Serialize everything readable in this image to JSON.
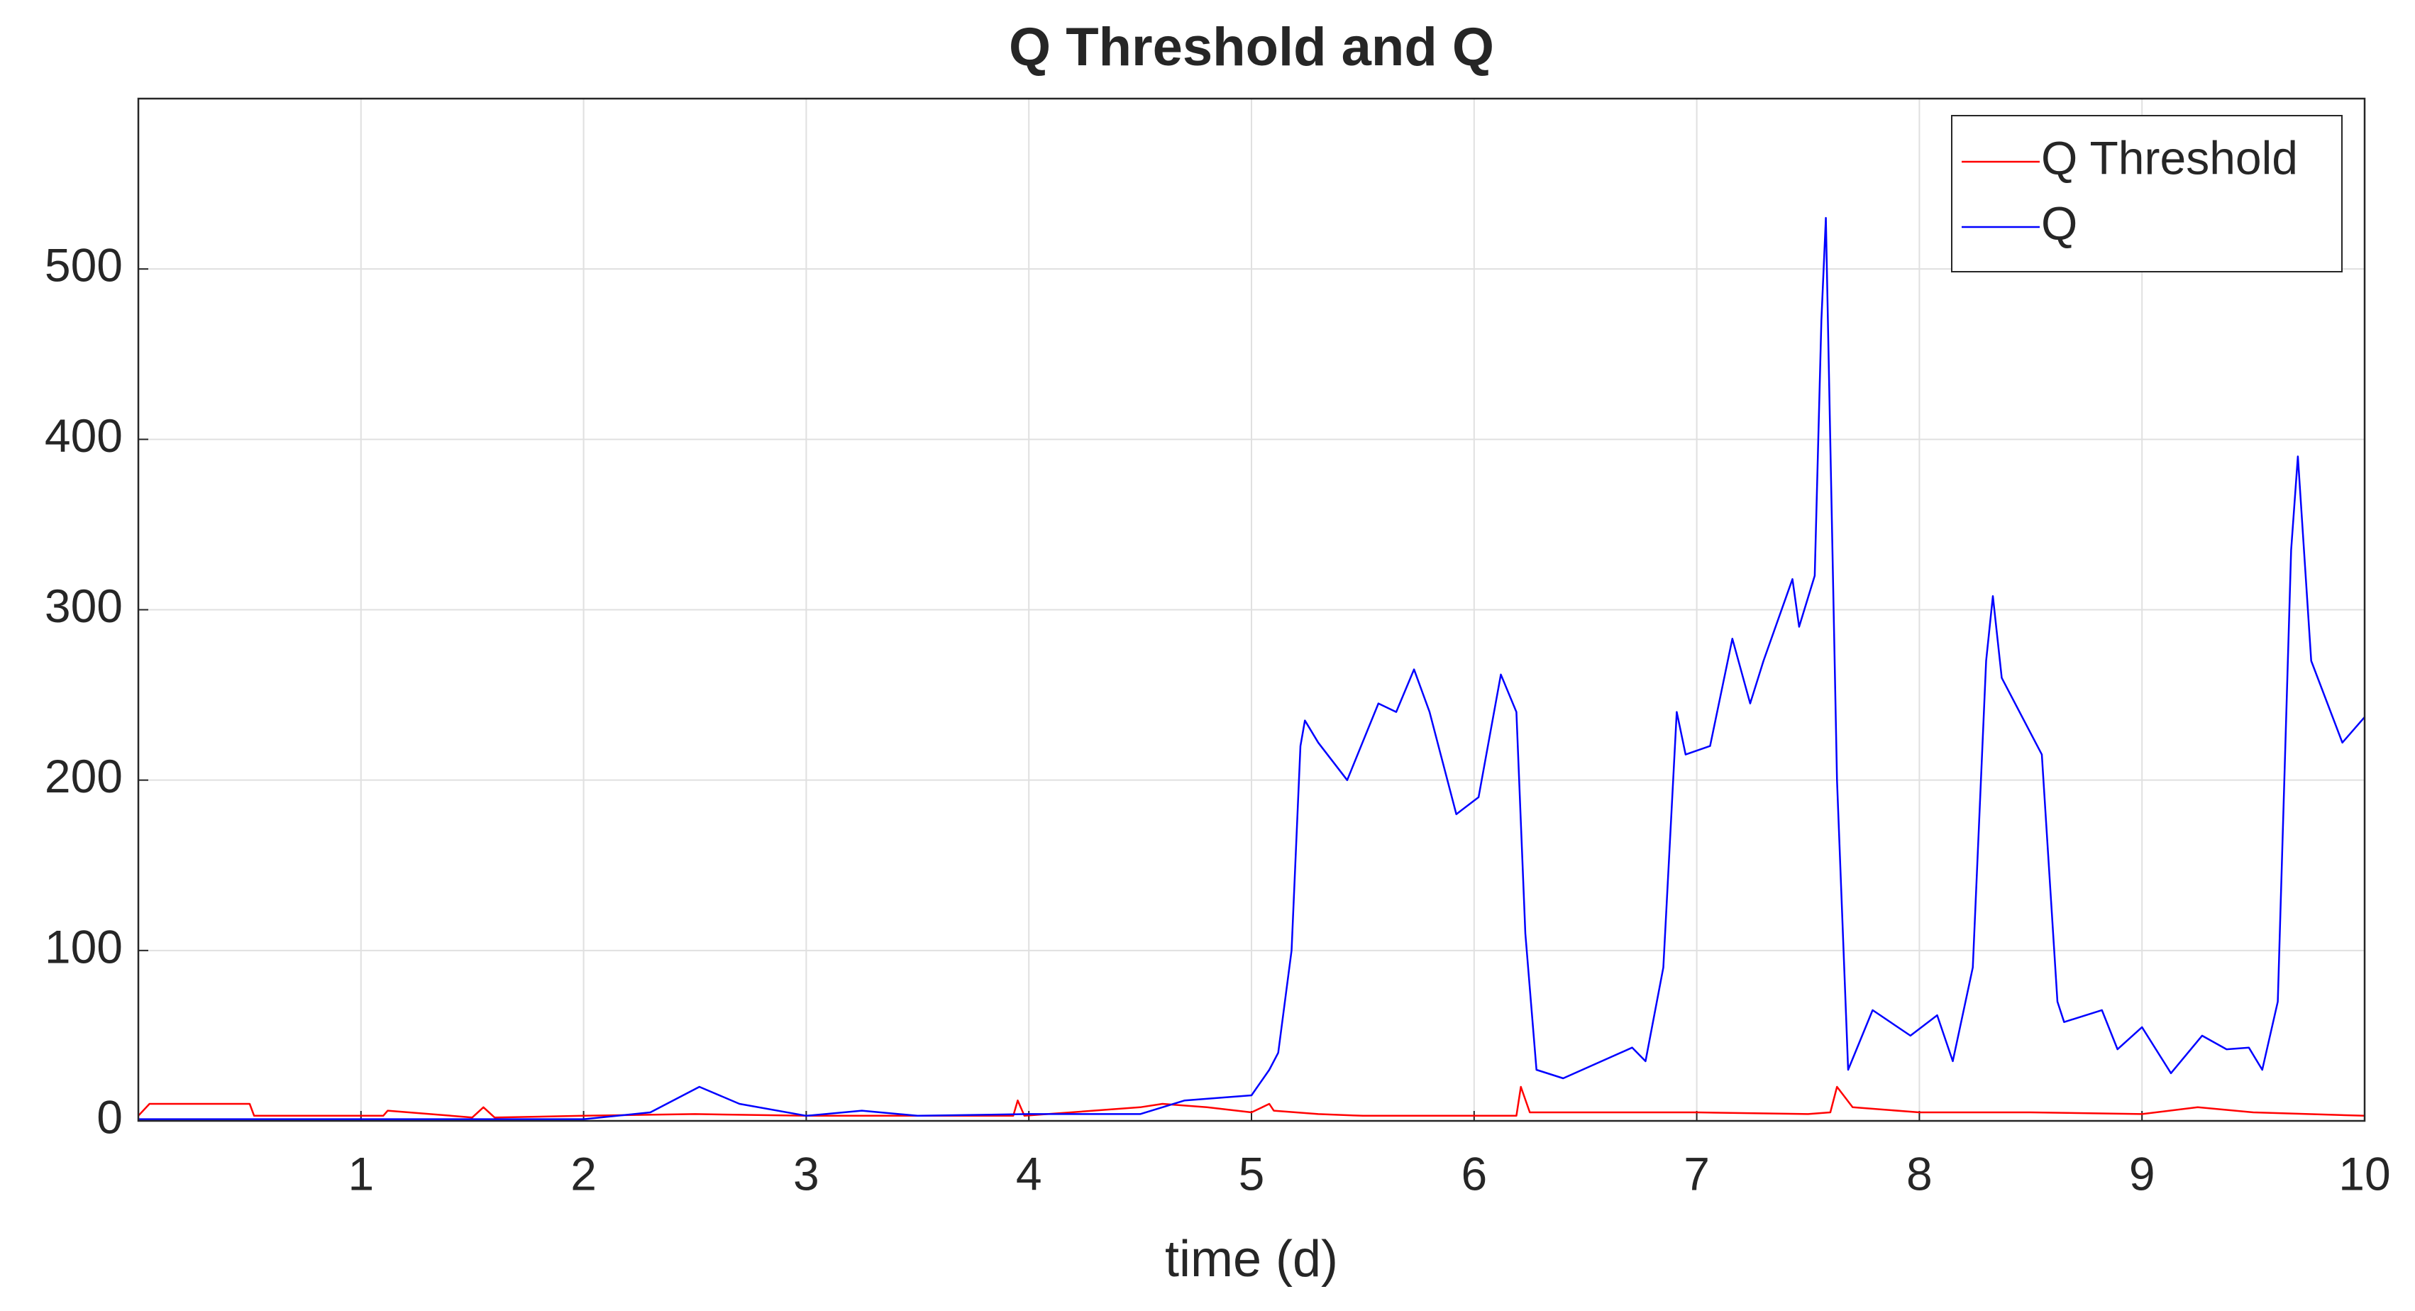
{
  "chart_data": {
    "type": "line",
    "title": "Q Threshold and Q",
    "xlabel": "time (d)",
    "xlim": [
      0,
      10
    ],
    "xticks": [
      1,
      2,
      3,
      4,
      5,
      6,
      7,
      8,
      9,
      10
    ],
    "ylim": [
      0,
      600
    ],
    "yticks": [
      0,
      100,
      200,
      300,
      400,
      500
    ],
    "grid": true,
    "legend": "upper right",
    "series": [
      {
        "name": "Q Threshold",
        "color": "#ff0000",
        "x": [
          0,
          0.05,
          0.5,
          0.52,
          1,
          1.1,
          1.12,
          1.5,
          1.55,
          1.6,
          2,
          2.5,
          3,
          3.5,
          3.93,
          3.95,
          3.98,
          4.5,
          4.6,
          4.8,
          5,
          5.08,
          5.1,
          5.3,
          5.5,
          6,
          6.19,
          6.21,
          6.25,
          6.5,
          7,
          7.5,
          7.6,
          7.63,
          7.7,
          8,
          8.5,
          9,
          9.25,
          9.5,
          10
        ],
        "values": [
          3,
          10,
          10,
          3,
          3,
          3,
          6,
          2,
          8,
          2,
          3,
          4,
          3,
          3,
          3,
          12,
          3,
          8,
          10,
          8,
          5,
          10,
          6,
          4,
          3,
          3,
          3,
          20,
          5,
          5,
          5,
          4,
          5,
          20,
          8,
          5,
          5,
          4,
          8,
          5,
          3
        ]
      },
      {
        "name": "Q",
        "color": "#0000ff",
        "x": [
          0,
          0.5,
          1,
          1.5,
          2,
          2.3,
          2.52,
          2.7,
          3,
          3.25,
          3.5,
          4,
          4.5,
          4.7,
          5,
          5.08,
          5.12,
          5.18,
          5.22,
          5.24,
          5.3,
          5.43,
          5.57,
          5.65,
          5.73,
          5.8,
          5.92,
          6.02,
          6.12,
          6.19,
          6.23,
          6.28,
          6.4,
          6.71,
          6.77,
          6.85,
          6.91,
          6.95,
          7.06,
          7.16,
          7.24,
          7.3,
          7.43,
          7.46,
          7.53,
          7.56,
          7.58,
          7.63,
          7.68,
          7.79,
          7.96,
          8.08,
          8.15,
          8.24,
          8.3,
          8.33,
          8.37,
          8.55,
          8.62,
          8.65,
          8.82,
          8.89,
          9,
          9.13,
          9.27,
          9.38,
          9.48,
          9.54,
          9.61,
          9.67,
          9.7,
          9.76,
          9.9,
          10
        ],
        "values": [
          1,
          1,
          1,
          1,
          1,
          5,
          20,
          10,
          3,
          6,
          3,
          4,
          4,
          12,
          15,
          30,
          40,
          100,
          220,
          235,
          222,
          200,
          245,
          240,
          265,
          240,
          180,
          190,
          262,
          240,
          110,
          30,
          25,
          43,
          35,
          90,
          240,
          215,
          220,
          283,
          245,
          270,
          318,
          290,
          320,
          470,
          530,
          200,
          30,
          65,
          50,
          62,
          35,
          90,
          270,
          308,
          260,
          215,
          70,
          58,
          65,
          42,
          55,
          28,
          50,
          42,
          43,
          30,
          70,
          335,
          390,
          270,
          222,
          237
        ]
      }
    ]
  }
}
